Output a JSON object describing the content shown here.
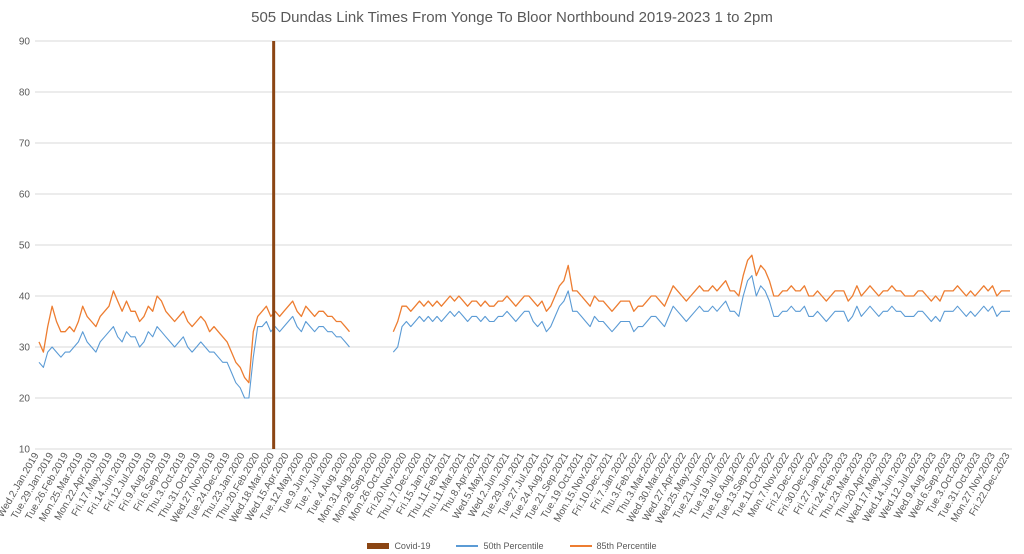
{
  "chart_data": {
    "type": "line",
    "title": "505 Dundas Link Times From Yonge To Bloor Northbound 2019-2023 1 to 2pm",
    "xlabel": "",
    "ylabel": "",
    "ylim": [
      10,
      90
    ],
    "yticks": [
      10,
      20,
      30,
      40,
      50,
      60,
      70,
      80,
      90
    ],
    "grid": true,
    "legend_position": "bottom",
    "x_tick_labels": [
      "Wed.2.Jan.2019",
      "Tue.29.Jan.2019",
      "Tue.26.Feb.2019",
      "Mon.25.Mar.2019",
      "Mon.22.Apr.2019",
      "Fri.17.May.2019",
      "Fri.14.Jun.2019",
      "Fri.12.Jul.2019",
      "Fri.9.Aug.2019",
      "Fri.6.Sep.2019",
      "Thu.3.Oct.2019",
      "Thu.31.Oct.2019",
      "Wed.27.Nov.2019",
      "Tue.24.Dec.2019",
      "Thu.23.Jan.2020",
      "Thu.20.Feb.2020",
      "Wed.18.Mar.2020",
      "Wed.15.Apr.2020",
      "Tue.12.May.2020",
      "Tue.9.Jun.2020",
      "Tue.7.Jul.2020",
      "Tue.4.Aug.2020",
      "Mon.31.Aug.2020",
      "Mon.28.Sep.2020",
      "Mon.26.Oct.2020",
      "Fri.20.Nov.2020",
      "Thu.17.Dec.2020",
      "Fri.15.Jan.2021",
      "Thu.11.Feb.2021",
      "Thu.11.Mar.2021",
      "Thu.8.Apr.2021",
      "Wed.5.May.2021",
      "Wed.2.Jun.2021",
      "Tue.29.Jun.2021",
      "Tue.27.Jul.2021",
      "Tue.24.Aug.2021",
      "Tue.21.Sep.2021",
      "Tue.19.Oct.2021",
      "Mon.15.Nov.2021",
      "Fri.10.Dec.2021",
      "Fri.7.Jan.2022",
      "Thu.3.Feb.2022",
      "Thu.3.Mar.2022",
      "Wed.30.Mar.2022",
      "Wed.27.Apr.2022",
      "Wed.25.May.2022",
      "Tue.21.Jun.2022",
      "Tue.19.Jul.2022",
      "Tue.16.Aug.2022",
      "Tue.13.Sep.2022",
      "Tue.11.Oct.2022",
      "Mon.7.Nov.2022",
      "Fri.2.Dec.2022",
      "Fri.30.Dec.2022",
      "Fri.27.Jan.2023",
      "Fri.24.Feb.2023",
      "Thu.23.Mar.2023",
      "Thu.20.Apr.2023",
      "Wed.17.May.2023",
      "Wed.14.Jun.2023",
      "Wed.12.Jul.2023",
      "Wed.9.Aug.2023",
      "Wed.6.Sep.2023",
      "Tue.3.Oct.2023",
      "Tue.31.Oct.2023",
      "Mon.27.Nov.2023",
      "Fri.22.Dec.2023"
    ],
    "series": [
      {
        "name": "Covid-19",
        "kind": "marker",
        "color": "#8B4513",
        "x": "Mon.16.Mar.2020",
        "value": 90
      },
      {
        "name": "50th Percentile",
        "kind": "line",
        "color": "#5B9BD5",
        "values": [
          27,
          26,
          29,
          30,
          29,
          28,
          29,
          29,
          30,
          31,
          33,
          31,
          30,
          29,
          31,
          32,
          33,
          34,
          32,
          31,
          33,
          32,
          32,
          30,
          31,
          33,
          32,
          34,
          33,
          32,
          31,
          30,
          31,
          32,
          30,
          29,
          30,
          31,
          30,
          29,
          29,
          28,
          27,
          27,
          25,
          23,
          22,
          20,
          20,
          28,
          34,
          34,
          35,
          33,
          34,
          33,
          34,
          35,
          36,
          34,
          33,
          35,
          34,
          33,
          34,
          34,
          33,
          33,
          32,
          32,
          31,
          30,
          null,
          null,
          null,
          null,
          null,
          null,
          null,
          null,
          null,
          29,
          30,
          34,
          35,
          34,
          35,
          36,
          35,
          36,
          35,
          36,
          35,
          36,
          37,
          36,
          37,
          36,
          35,
          36,
          36,
          35,
          36,
          35,
          35,
          36,
          36,
          37,
          36,
          35,
          36,
          37,
          37,
          35,
          34,
          35,
          33,
          34,
          36,
          38,
          39,
          41,
          37,
          37,
          36,
          35,
          34,
          36,
          35,
          35,
          34,
          33,
          34,
          35,
          35,
          35,
          33,
          34,
          34,
          35,
          36,
          36,
          35,
          34,
          36,
          38,
          37,
          36,
          35,
          36,
          37,
          38,
          37,
          37,
          38,
          37,
          38,
          39,
          37,
          37,
          36,
          40,
          43,
          44,
          40,
          42,
          41,
          39,
          36,
          36,
          37,
          37,
          38,
          37,
          37,
          38,
          36,
          36,
          37,
          36,
          35,
          36,
          37,
          37,
          37,
          35,
          36,
          38,
          36,
          37,
          38,
          37,
          36,
          37,
          37,
          38,
          37,
          37,
          36,
          36,
          36,
          37,
          37,
          36,
          35,
          36,
          35,
          37,
          37,
          37,
          38,
          37,
          36,
          37,
          36,
          37,
          38,
          37,
          38,
          36,
          37,
          37,
          37
        ]
      },
      {
        "name": "85th Percentile",
        "kind": "line",
        "color": "#ED7D31",
        "values": [
          31,
          29,
          34,
          38,
          35,
          33,
          33,
          34,
          33,
          35,
          38,
          36,
          35,
          34,
          36,
          37,
          38,
          41,
          39,
          37,
          39,
          37,
          37,
          35,
          36,
          38,
          37,
          40,
          39,
          37,
          36,
          35,
          36,
          37,
          35,
          34,
          35,
          36,
          35,
          33,
          34,
          33,
          32,
          31,
          29,
          27,
          26,
          24,
          23,
          33,
          36,
          37,
          38,
          36,
          37,
          36,
          37,
          38,
          39,
          37,
          36,
          38,
          37,
          36,
          37,
          37,
          36,
          36,
          35,
          35,
          34,
          33,
          null,
          null,
          null,
          null,
          null,
          null,
          null,
          null,
          null,
          33,
          35,
          38,
          38,
          37,
          38,
          39,
          38,
          39,
          38,
          39,
          38,
          39,
          40,
          39,
          40,
          39,
          38,
          39,
          39,
          38,
          39,
          38,
          38,
          39,
          39,
          40,
          39,
          38,
          39,
          40,
          40,
          39,
          38,
          39,
          37,
          38,
          40,
          42,
          43,
          46,
          41,
          41,
          40,
          39,
          38,
          40,
          39,
          39,
          38,
          37,
          38,
          39,
          39,
          39,
          37,
          38,
          38,
          39,
          40,
          40,
          39,
          38,
          40,
          42,
          41,
          40,
          39,
          40,
          41,
          42,
          41,
          41,
          42,
          41,
          42,
          43,
          41,
          41,
          40,
          44,
          47,
          48,
          44,
          46,
          45,
          43,
          40,
          40,
          41,
          41,
          42,
          41,
          41,
          42,
          40,
          40,
          41,
          40,
          39,
          40,
          41,
          41,
          41,
          39,
          40,
          42,
          40,
          41,
          42,
          41,
          40,
          41,
          41,
          42,
          41,
          41,
          40,
          40,
          40,
          41,
          41,
          40,
          39,
          40,
          39,
          41,
          41,
          41,
          42,
          41,
          40,
          41,
          40,
          41,
          42,
          41,
          42,
          40,
          41,
          41,
          41
        ]
      }
    ]
  }
}
